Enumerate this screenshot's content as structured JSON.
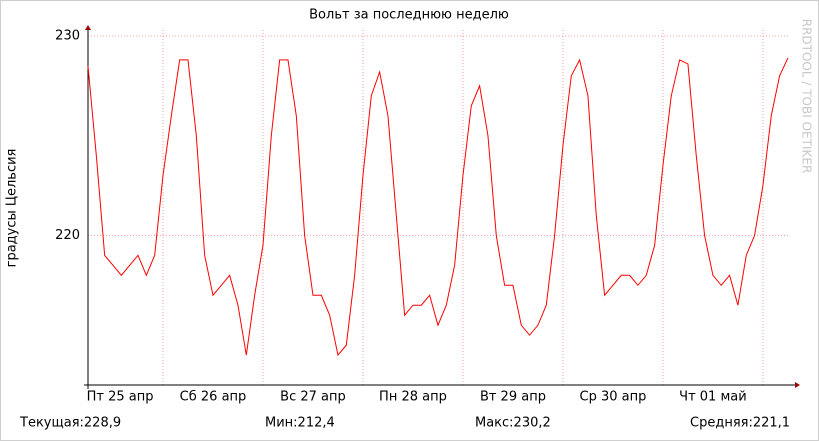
{
  "chart_data": {
    "type": "line",
    "title": "Вольт за последнюю неделю",
    "y_label": "градусы Цельсия",
    "watermark": "RRDTOOL / TOBI OETIKER",
    "x": [
      0,
      2,
      4,
      6,
      8,
      10,
      12,
      14,
      16,
      18,
      20,
      22,
      24,
      26,
      28,
      30,
      32,
      34,
      36,
      38,
      40,
      42,
      44,
      46,
      48,
      50,
      52,
      54,
      56,
      58,
      60,
      62,
      64,
      66,
      68,
      70,
      72,
      74,
      76,
      78,
      80,
      82,
      84,
      86,
      88,
      90,
      92,
      94,
      96,
      98,
      100,
      102,
      104,
      106,
      108,
      110,
      112,
      114,
      116,
      118,
      120,
      122,
      124,
      126,
      128,
      130,
      132,
      134,
      136,
      138,
      140,
      142,
      144,
      146,
      148,
      150,
      152,
      154,
      156,
      158,
      160,
      162,
      164,
      166,
      168
    ],
    "series": [
      {
        "name": "Вольт",
        "color": "#ff0000",
        "values": [
          228.5,
          224,
          219,
          218.5,
          218,
          218.5,
          219,
          218,
          219,
          223,
          226,
          228.8,
          228.8,
          225,
          219,
          217,
          217.5,
          218,
          216.5,
          214,
          217,
          219.5,
          225,
          228.8,
          228.8,
          226,
          220,
          217,
          217,
          216,
          214,
          214.5,
          218,
          223,
          227,
          228.2,
          226,
          221,
          216,
          216.5,
          216.5,
          217,
          215.5,
          216.5,
          218.5,
          223,
          226.5,
          227.5,
          225,
          220,
          217.5,
          217.5,
          215.5,
          215,
          215.5,
          216.5,
          220,
          224.5,
          228,
          228.8,
          227,
          221,
          217,
          217.5,
          218,
          218,
          217.5,
          218,
          219.5,
          223.5,
          227,
          228.8,
          228.6,
          224,
          220,
          218,
          217.5,
          218,
          216.5,
          219,
          220,
          222.5,
          226,
          228,
          228.9
        ]
      }
    ],
    "xlim": [
      0,
      168.5
    ],
    "xticks": [
      {
        "value": 7.7,
        "label": "Пт 25 апр"
      },
      {
        "value": 30,
        "label": "Сб 26 апр"
      },
      {
        "value": 54,
        "label": "Вс 27 апр"
      },
      {
        "value": 78,
        "label": "Пн 28 апр"
      },
      {
        "value": 102,
        "label": "Вт 29 апр"
      },
      {
        "value": 126,
        "label": "Ср 30 апр"
      },
      {
        "value": 150,
        "label": "Чт 01 май"
      }
    ],
    "x_major_grid": [
      18,
      42,
      66,
      90,
      114,
      138,
      162
    ],
    "ylim": [
      212.5,
      230.3
    ],
    "yticks": [
      220,
      230
    ],
    "grid": true,
    "footer": [
      "Текущая:228,9",
      "Мин:212,4",
      "Макс:230,2",
      "Средняя:221,1"
    ]
  }
}
